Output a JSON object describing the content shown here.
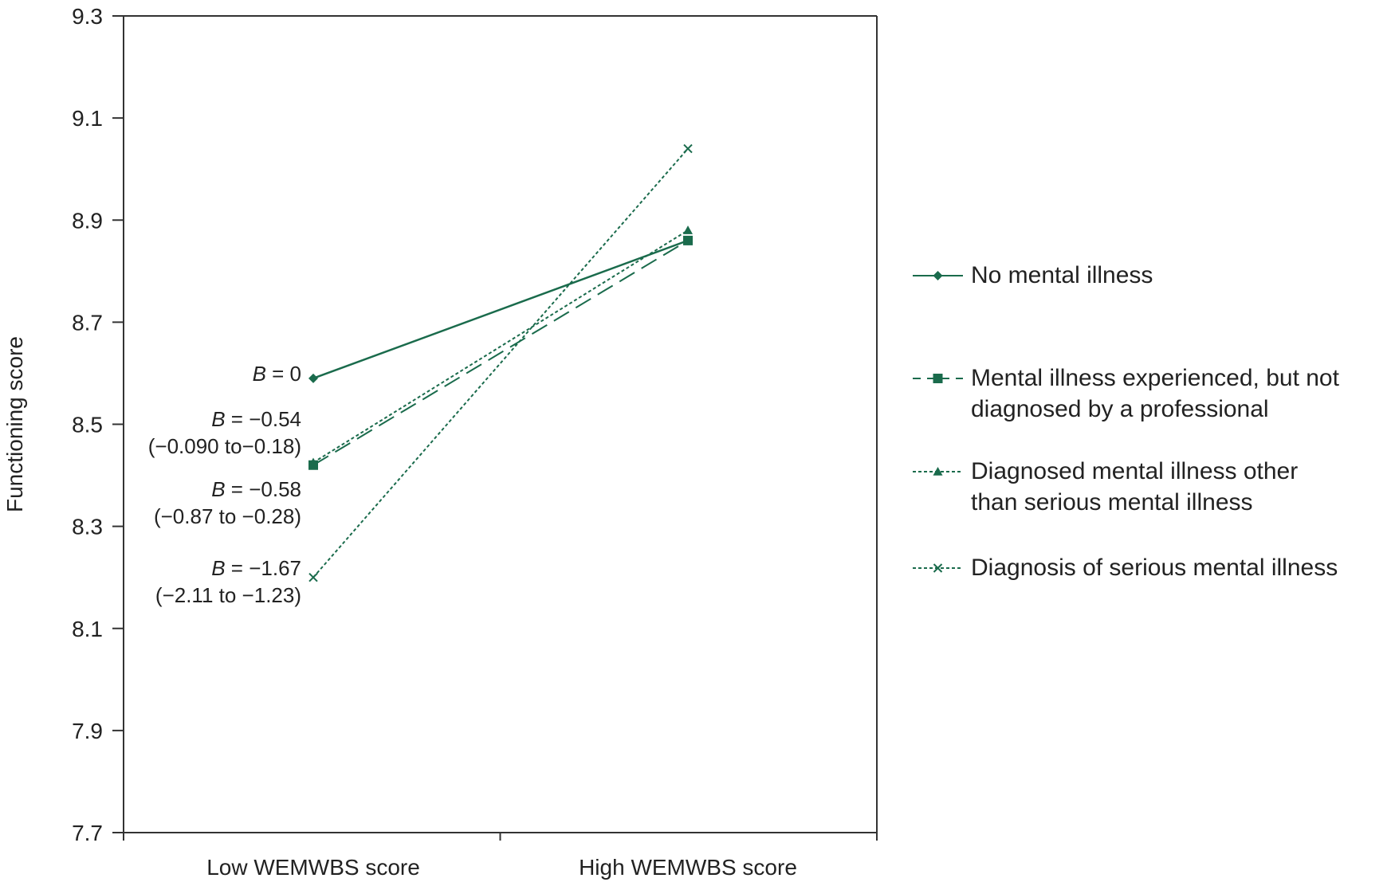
{
  "chart_data": {
    "type": "line",
    "title": "",
    "xlabel": "",
    "ylabel": "Functioning score",
    "categories": [
      "Low WEMWBS score",
      "High WEMWBS score"
    ],
    "ylim": [
      7.7,
      9.3
    ],
    "yticks": [
      "9.3",
      "9.1",
      "8.9",
      "8.7",
      "8.5",
      "8.3",
      "8.1",
      "7.9",
      "7.7"
    ],
    "grid": false,
    "legend_position": "right",
    "color": "#1a6b4c",
    "series": [
      {
        "name": "No mental illness",
        "values": [
          8.59,
          8.86
        ],
        "marker": "diamond",
        "dash": "solid",
        "label_lines": [
          [
            "B",
            " = 0"
          ]
        ]
      },
      {
        "name": "Mental illness experienced, but not diagnosed by a professional",
        "values": [
          8.42,
          8.86
        ],
        "marker": "square",
        "dash": "long-dash",
        "legend_lines": [
          "Mental illness experienced, but not",
          "diagnosed by a professional"
        ],
        "label_lines": [
          [
            "B",
            " = −0.54"
          ],
          [
            "",
            "(−0.090 to−0.18)"
          ]
        ]
      },
      {
        "name": "Diagnosed mental illness other than serious mental illness",
        "values": [
          8.425,
          8.88
        ],
        "marker": "triangle",
        "dash": "dotted",
        "legend_lines": [
          "Diagnosed mental illness other",
          "than serious mental illness"
        ],
        "label_lines": [
          [
            "B",
            " = −0.58"
          ],
          [
            "",
            "(−0.87 to  −0.28)"
          ]
        ]
      },
      {
        "name": "Diagnosis of serious mental illness",
        "values": [
          8.2,
          9.04
        ],
        "marker": "x",
        "dash": "dotted",
        "label_lines": [
          [
            "B",
            " = −1.67"
          ],
          [
            "",
            "(−2.11 to −1.23)"
          ]
        ]
      }
    ]
  }
}
